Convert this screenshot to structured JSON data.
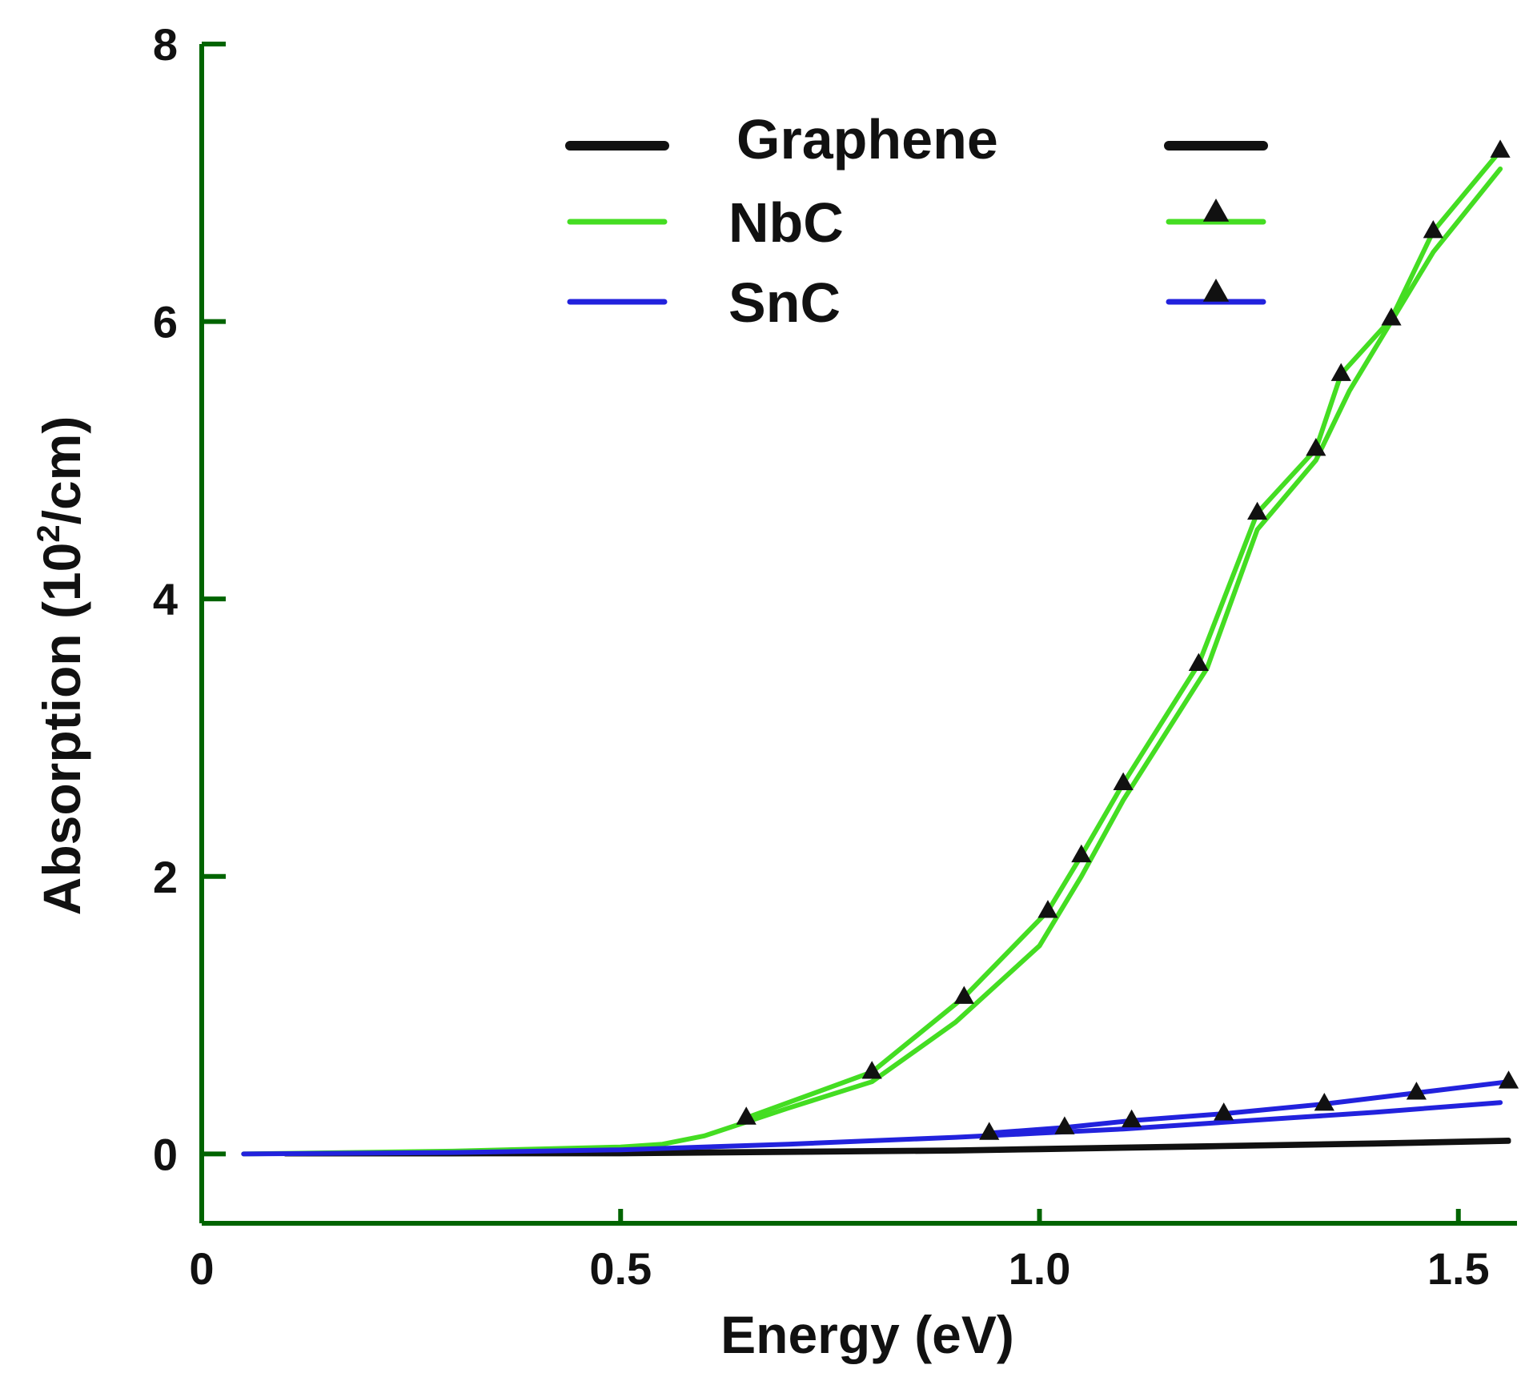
{
  "chart_data": {
    "type": "line",
    "title": "",
    "xlabel": "Energy (eV)",
    "ylabel_main": "Absorption (10",
    "ylabel_sup": "2",
    "ylabel_tail": "/cm)",
    "xlim": [
      0,
      1.57
    ],
    "ylim": [
      -0.5,
      8
    ],
    "x_ticks": [
      {
        "value": 0,
        "label": "0"
      },
      {
        "value": 0.5,
        "label": "0.5"
      },
      {
        "value": 1.0,
        "label": "1.0"
      },
      {
        "value": 1.5,
        "label": "1.5"
      }
    ],
    "y_ticks": [
      {
        "value": 0,
        "label": "0"
      },
      {
        "value": 2,
        "label": "2"
      },
      {
        "value": 4,
        "label": "4"
      },
      {
        "value": 6,
        "label": "6"
      },
      {
        "value": 8,
        "label": "8"
      }
    ],
    "axis_color": "#006400",
    "legend_placement": "top-center",
    "series": [
      {
        "name": "Graphene",
        "color": "#111111",
        "style": "line",
        "x": [
          0.1,
          0.3,
          0.5,
          0.7,
          0.9,
          1.0,
          1.2,
          1.4,
          1.56
        ],
        "y": [
          0.0,
          0.0,
          0.0,
          0.01,
          0.02,
          0.03,
          0.05,
          0.07,
          0.09
        ]
      },
      {
        "name": "Graphene (triangle)",
        "color": "#111111",
        "style": "line-triangle",
        "x": [
          0.1,
          0.3,
          0.5,
          0.7,
          0.9,
          1.0,
          1.2,
          1.4,
          1.56
        ],
        "y": [
          0.0,
          0.0,
          0.01,
          0.02,
          0.03,
          0.04,
          0.06,
          0.08,
          0.1
        ]
      },
      {
        "name": "NbC",
        "color": "#44dd22",
        "style": "line",
        "x": [
          0.05,
          0.3,
          0.5,
          0.55,
          0.6,
          0.65,
          0.7,
          0.8,
          0.9,
          1.0,
          1.05,
          1.1,
          1.2,
          1.26,
          1.33,
          1.37,
          1.42,
          1.47,
          1.55
        ],
        "y": [
          0.0,
          0.02,
          0.05,
          0.07,
          0.13,
          0.23,
          0.33,
          0.52,
          0.95,
          1.5,
          2.0,
          2.55,
          3.5,
          4.5,
          5.0,
          5.5,
          6.0,
          6.5,
          7.1
        ]
      },
      {
        "name": "NbC (triangle)",
        "color": "#44dd22",
        "style": "line-triangle",
        "x": [
          0.65,
          0.8,
          0.91,
          1.01,
          1.05,
          1.1,
          1.19,
          1.26,
          1.33,
          1.36,
          1.42,
          1.47,
          1.55
        ],
        "y": [
          0.26,
          0.59,
          1.13,
          1.75,
          2.15,
          2.67,
          3.53,
          4.62,
          5.08,
          5.62,
          6.02,
          6.65,
          7.23
        ]
      },
      {
        "name": "SnC",
        "color": "#2222dd",
        "style": "line",
        "x": [
          0.05,
          0.3,
          0.5,
          0.7,
          0.9,
          1.0,
          1.1,
          1.2,
          1.3,
          1.4,
          1.55
        ],
        "y": [
          0.0,
          0.01,
          0.03,
          0.07,
          0.12,
          0.15,
          0.18,
          0.22,
          0.26,
          0.3,
          0.37
        ]
      },
      {
        "name": "SnC (triangle)",
        "color": "#2222dd",
        "style": "line-triangle",
        "x": [
          0.94,
          1.03,
          1.11,
          1.22,
          1.34,
          1.45,
          1.56
        ],
        "y": [
          0.15,
          0.19,
          0.24,
          0.29,
          0.36,
          0.44,
          0.52
        ]
      }
    ],
    "legend": [
      {
        "label": "Graphene",
        "color": "#111111"
      },
      {
        "label": "NbC",
        "color": "#44dd22"
      },
      {
        "label": "SnC",
        "color": "#2222dd"
      }
    ]
  }
}
